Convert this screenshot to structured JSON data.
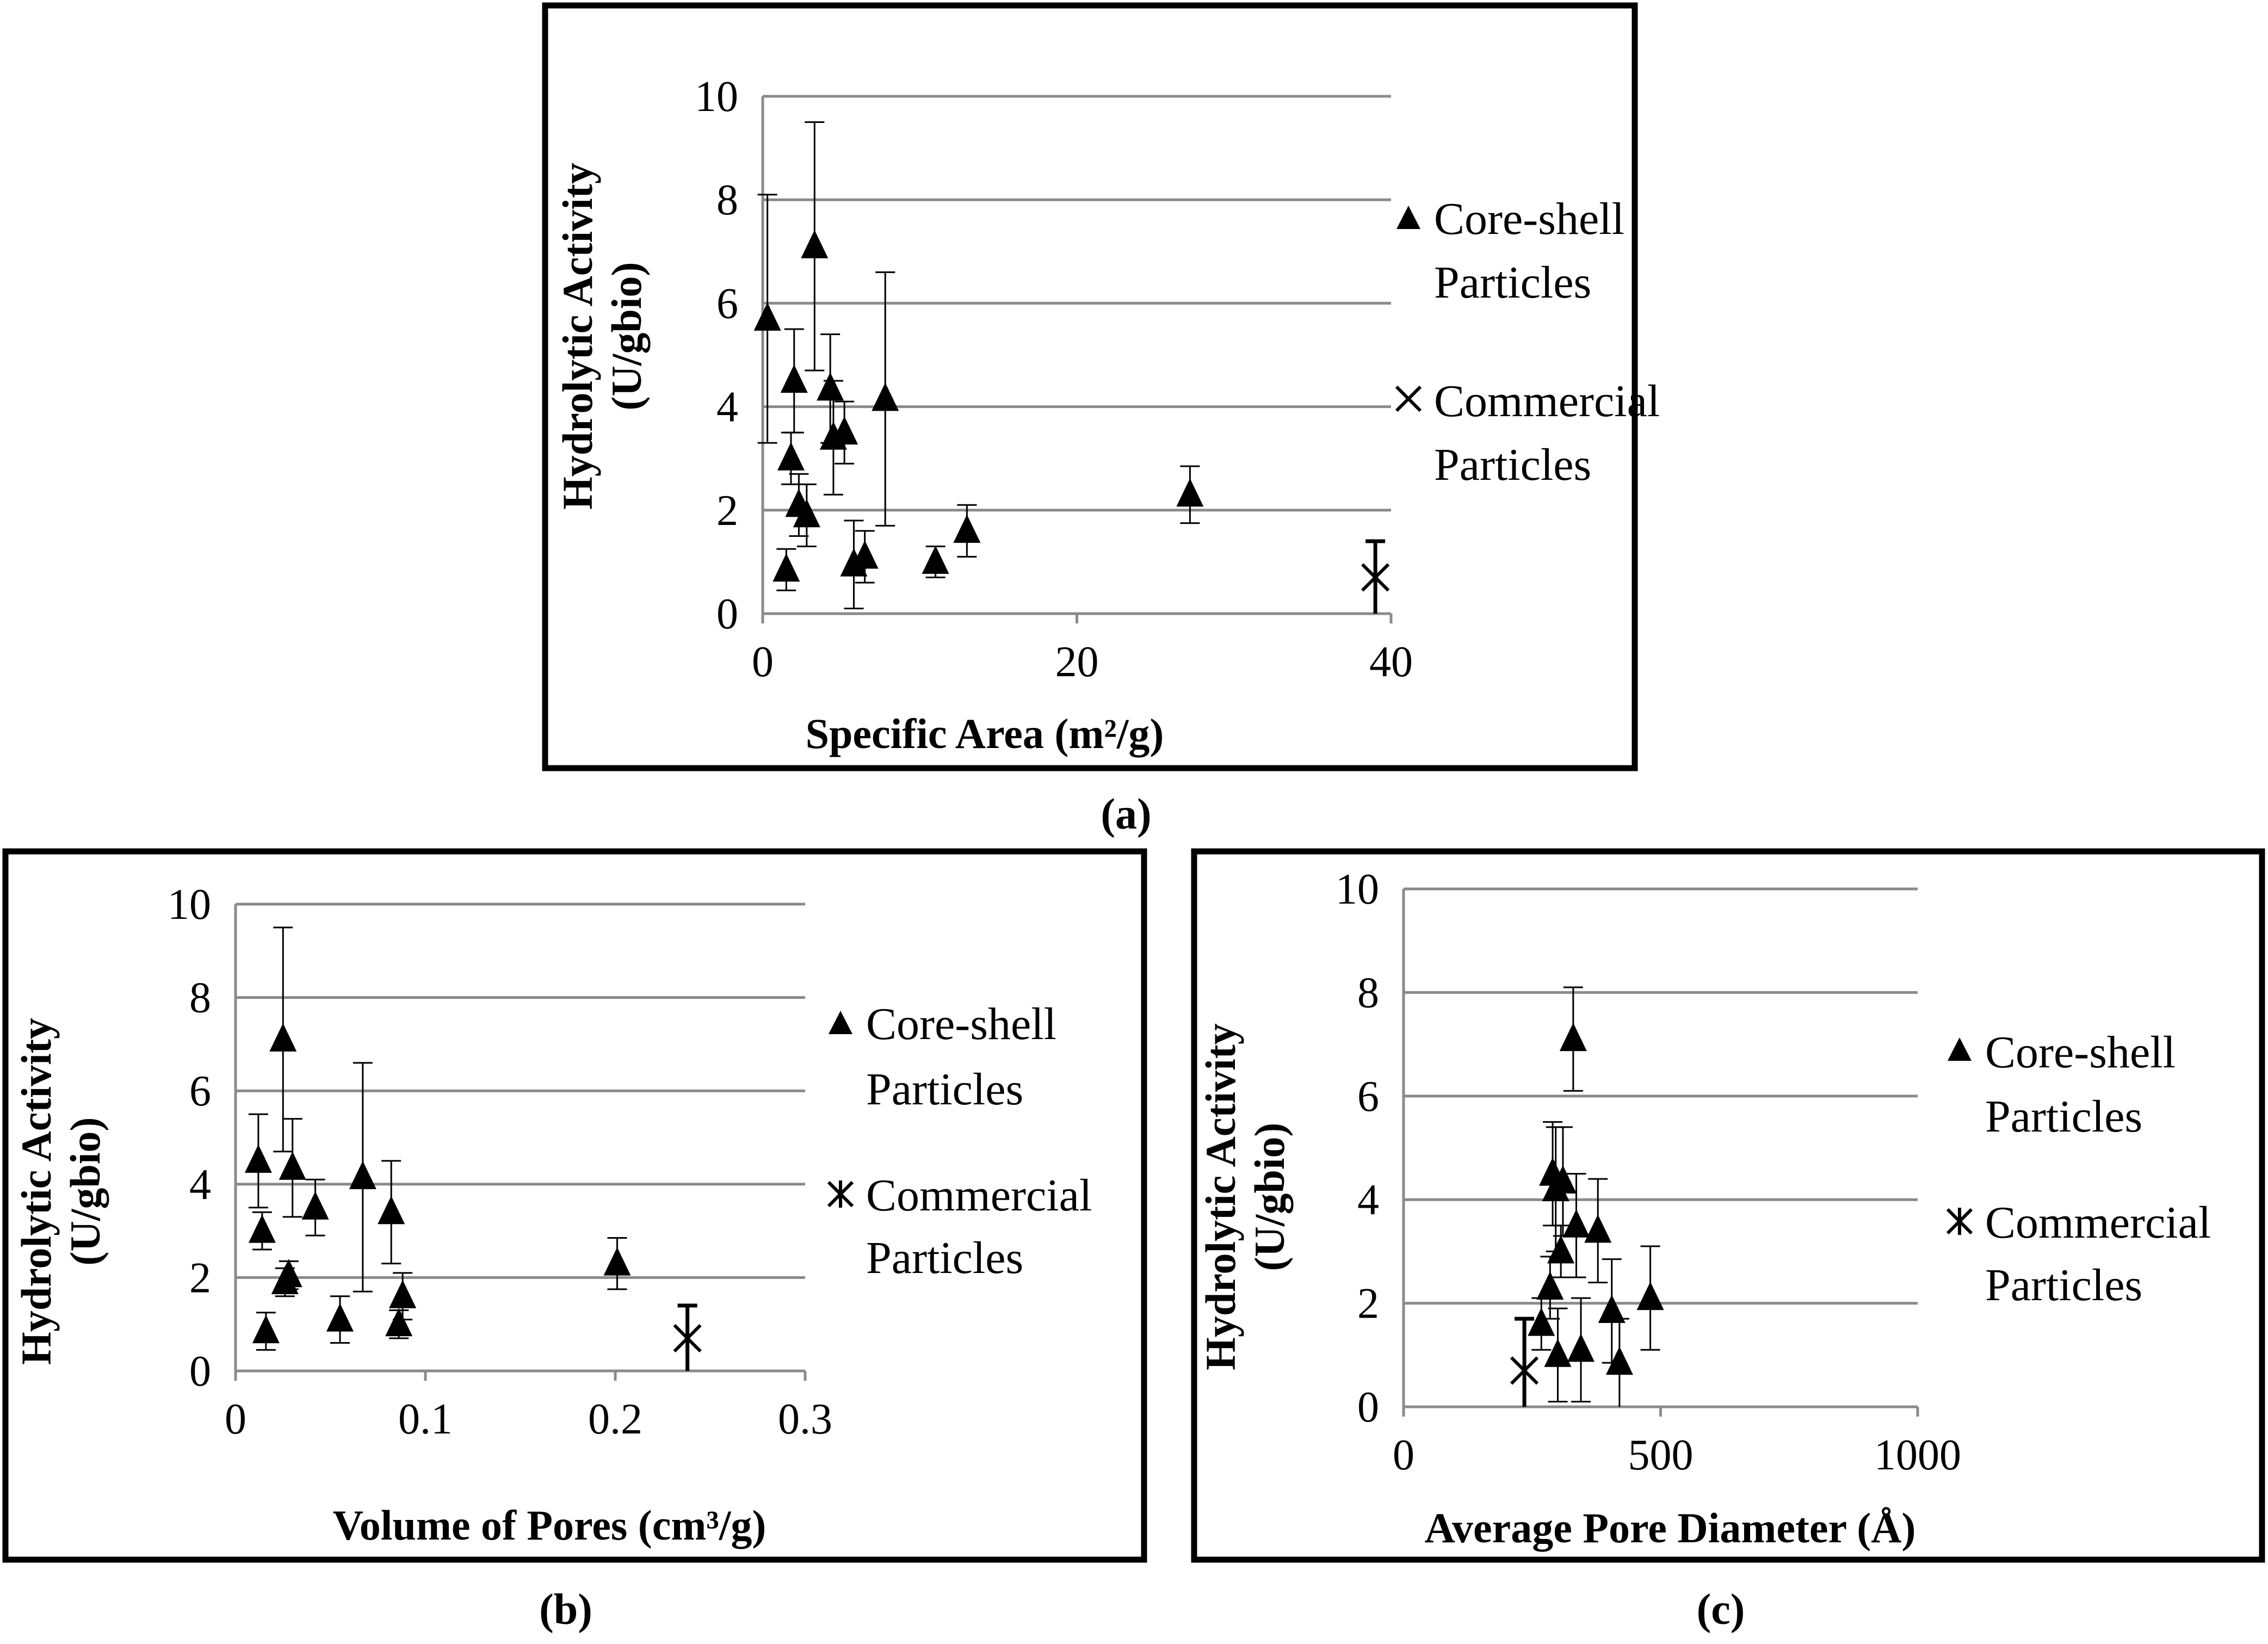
{
  "figure": {
    "panel_a_label": "(a)",
    "panel_b_label": "(b)",
    "panel_c_label": "(c)"
  },
  "colors": {
    "gridline": "#8a8a8a",
    "marker": "#000000",
    "frame": "#000000",
    "background": "#ffffff"
  },
  "chart_data": [
    {
      "id": "a",
      "type": "scatter",
      "title": "",
      "xlabel": "Specific Area (m²/g)",
      "ylabel_line1": "Hydrolytic Activity",
      "ylabel_line2": "(U/gbio)",
      "xlim": [
        0,
        40
      ],
      "ylim": [
        0,
        10
      ],
      "xticks": [
        0,
        20,
        40
      ],
      "xtick_labels": [
        "0",
        "20",
        "40"
      ],
      "yticks": [
        0,
        2,
        4,
        6,
        8,
        10
      ],
      "ytick_labels": [
        "0",
        "2",
        "4",
        "6",
        "8",
        "10"
      ],
      "grid": "horizontal",
      "legend_position": "right",
      "series": [
        {
          "name": "Core-shell Particles",
          "legend_line1": "Core-shell",
          "legend_line2": "Particles",
          "marker": "triangle",
          "points": [
            {
              "x": 0.3,
              "y": 5.7,
              "err": 2.4
            },
            {
              "x": 1.5,
              "y": 0.85,
              "err": 0.4
            },
            {
              "x": 1.8,
              "y": 3.0,
              "err": 0.5
            },
            {
              "x": 2.0,
              "y": 4.5,
              "err": 1.0
            },
            {
              "x": 2.3,
              "y": 2.1,
              "err": 0.6
            },
            {
              "x": 2.8,
              "y": 1.9,
              "err": 0.6
            },
            {
              "x": 3.3,
              "y": 7.1,
              "err": 2.4
            },
            {
              "x": 4.3,
              "y": 4.35,
              "err": 1.05
            },
            {
              "x": 4.5,
              "y": 3.4,
              "err": 1.1
            },
            {
              "x": 5.2,
              "y": 3.5,
              "err": 0.6
            },
            {
              "x": 5.8,
              "y": 0.95,
              "err": 0.85
            },
            {
              "x": 6.5,
              "y": 1.1,
              "err": 0.5
            },
            {
              "x": 7.8,
              "y": 4.15,
              "err": 2.45
            },
            {
              "x": 11.0,
              "y": 1.0,
              "err": 0.3
            },
            {
              "x": 13.0,
              "y": 1.6,
              "err": 0.5
            },
            {
              "x": 27.2,
              "y": 2.3,
              "err": 0.55
            }
          ]
        },
        {
          "name": "Commercial Particles",
          "legend_line1": "Commercial",
          "legend_line2": "Particles",
          "marker": "x",
          "points": [
            {
              "x": 39.0,
              "y": 0.7,
              "err": 0.7
            }
          ]
        }
      ]
    },
    {
      "id": "b",
      "type": "scatter",
      "title": "",
      "xlabel": "Volume of Pores (cm³/g)",
      "ylabel_line1": "Hydrolytic Activity",
      "ylabel_line2": "(U/gbio)",
      "xlim": [
        0,
        0.3
      ],
      "ylim": [
        0,
        10
      ],
      "xticks": [
        0,
        0.1,
        0.2,
        0.3
      ],
      "xtick_labels": [
        "0",
        "0.1",
        "0.2",
        "0.3"
      ],
      "yticks": [
        0,
        2,
        4,
        6,
        8,
        10
      ],
      "ytick_labels": [
        "0",
        "2",
        "4",
        "6",
        "8",
        "10"
      ],
      "grid": "horizontal",
      "legend_position": "right",
      "series": [
        {
          "name": "Core-shell Particles",
          "legend_line1": "Core-shell",
          "legend_line2": "Particles",
          "marker": "triangle",
          "points": [
            {
              "x": 0.012,
              "y": 4.5,
              "err": 1.0
            },
            {
              "x": 0.014,
              "y": 3.0,
              "err": 0.4
            },
            {
              "x": 0.016,
              "y": 0.85,
              "err": 0.4
            },
            {
              "x": 0.025,
              "y": 7.1,
              "err": 2.4
            },
            {
              "x": 0.026,
              "y": 1.9,
              "err": 0.3
            },
            {
              "x": 0.028,
              "y": 2.05,
              "err": 0.3
            },
            {
              "x": 0.03,
              "y": 4.35,
              "err": 1.05
            },
            {
              "x": 0.042,
              "y": 3.5,
              "err": 0.6
            },
            {
              "x": 0.055,
              "y": 1.1,
              "err": 0.5
            },
            {
              "x": 0.067,
              "y": 4.15,
              "err": 2.45
            },
            {
              "x": 0.082,
              "y": 3.4,
              "err": 1.1
            },
            {
              "x": 0.086,
              "y": 1.0,
              "err": 0.3
            },
            {
              "x": 0.088,
              "y": 1.6,
              "err": 0.5
            },
            {
              "x": 0.201,
              "y": 2.3,
              "err": 0.55
            }
          ]
        },
        {
          "name": "Commercial Particles",
          "legend_line1": "Commercial",
          "legend_line2": "Particles",
          "marker": "asterisk",
          "points": [
            {
              "x": 0.238,
              "y": 0.7,
              "err": 0.7
            }
          ]
        }
      ]
    },
    {
      "id": "c",
      "type": "scatter",
      "title": "",
      "xlabel": "Average Pore Diameter (Å)",
      "ylabel_line1": "Hydrolytic Activity",
      "ylabel_line2": "(U/gbio)",
      "xlim": [
        0,
        1000
      ],
      "ylim": [
        0,
        10
      ],
      "xticks": [
        0,
        500,
        1000
      ],
      "xtick_labels": [
        "0",
        "500",
        "1000"
      ],
      "yticks": [
        0,
        2,
        4,
        6,
        8,
        10
      ],
      "ytick_labels": [
        "0",
        "2",
        "4",
        "6",
        "8",
        "10"
      ],
      "grid": "horizontal",
      "legend_position": "right",
      "series": [
        {
          "name": "Core-shell Particles",
          "legend_line1": "Core-shell",
          "legend_line2": "Particles",
          "marker": "triangle",
          "points": [
            {
              "x": 268,
              "y": 1.6,
              "err": 0.5
            },
            {
              "x": 285,
              "y": 2.3,
              "err": 0.6
            },
            {
              "x": 290,
              "y": 4.5,
              "err": 1.0
            },
            {
              "x": 296,
              "y": 4.2,
              "err": 1.2
            },
            {
              "x": 300,
              "y": 1.0,
              "err": 0.9
            },
            {
              "x": 306,
              "y": 3.0,
              "err": 0.5
            },
            {
              "x": 310,
              "y": 4.35,
              "err": 1.05
            },
            {
              "x": 330,
              "y": 7.1,
              "err": 1.0
            },
            {
              "x": 336,
              "y": 3.5,
              "err": 1.0
            },
            {
              "x": 345,
              "y": 1.1,
              "err": 1.0
            },
            {
              "x": 378,
              "y": 3.4,
              "err": 1.0
            },
            {
              "x": 405,
              "y": 1.85,
              "err": 1.0
            },
            {
              "x": 420,
              "y": 0.85,
              "err": 0.85
            },
            {
              "x": 480,
              "y": 2.1,
              "err": 1.0
            }
          ]
        },
        {
          "name": "Commercial Particles",
          "legend_line1": "Commercial",
          "legend_line2": "Particles",
          "marker": "asterisk",
          "points": [
            {
              "x": 235,
              "y": 0.7,
              "err": 1.0
            }
          ]
        }
      ]
    }
  ]
}
